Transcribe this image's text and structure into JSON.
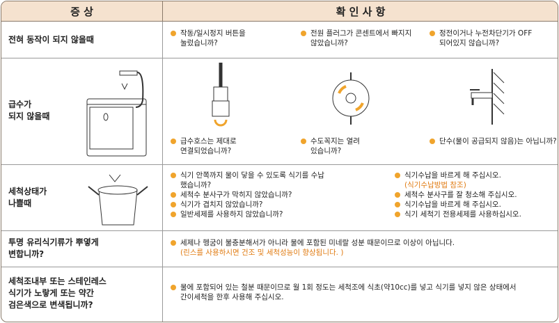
{
  "header": {
    "symptom": "증 상",
    "check": "확 인 사 항"
  },
  "rows": [
    {
      "symptom": [
        "전혀 동작이 되지 않을때"
      ],
      "checks": [
        "작동/일시정지 버튼을 눌렀습니까?",
        "전원 플러그가 콘센트에서 빠지지 않았습니까?",
        "정전이거나 누전차단기가 OFF 되어있지 않습니까?"
      ]
    },
    {
      "symptom": [
        "급수가",
        "되지 않을때"
      ],
      "checks": [
        "급수호스는 제대로 연결되었습니까?",
        "수도꼭지는 열려 있습니까?",
        "단수(물이 공급되지 않음)는 아닙니까?"
      ]
    },
    {
      "symptom": [
        "세척상태가",
        "나쁠때"
      ],
      "causes": [
        "식기 안쪽까지 물이 닿을 수 있도록 식기를 수납 했습니까?",
        "세척수 분사구가 막히지 않았습니까?",
        "식기가 겹치지 않았습니까?",
        "일반세제를 사용하지 않았습니까?"
      ],
      "remedies": [
        "식기수납을 바르게 해 주십시오.",
        "세척수 분사구를 잘 청소해 주십시오.",
        "식기수납을 바르게 해 주십시오.",
        "식기 세척기 전용세제를 사용하십시오."
      ],
      "remedy_note": "(식기수납방법 참조)"
    },
    {
      "symptom": [
        "투명 유리식기류가 뿌옇게",
        "변합니까?"
      ],
      "text": "세제나 헹굼이 불충분해서가 아니라 물에 포함된 미네랄 성분 때문이므로 이상이 아닙니다.",
      "note": "(린스를 사용하시면 건조 및 세척성능이 향상됩니다. )"
    },
    {
      "symptom": [
        "세척조내부 또는 스테인레스",
        "식기가 노랗게 또는 약간",
        "검은색으로 변색됩니까?"
      ],
      "text": "물에 포함되어 있는 철분 때문이므로 월 1회 정도는 세척조에 식초(약10cc)를 넣고 식기를 넣지 않은 상태에서 간이세척을 한후 사용해 주십시오."
    }
  ]
}
